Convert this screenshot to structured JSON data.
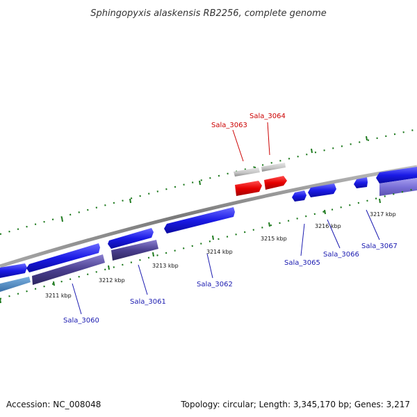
{
  "title": "Sphingopyxis alaskensis RB2256, complete genome",
  "footer": {
    "accession": "Accession: NC_008048",
    "summary": "Topology: circular; Length: 3,345,170 bp; Genes: 3,217"
  },
  "scale_labels": [
    "3211 kbp",
    "3212 kbp",
    "3213 kbp",
    "3214 kbp",
    "3215 kbp",
    "3216 kbp",
    "3217 kbp"
  ],
  "gene_labels": {
    "sala_3060": "Sala_3060",
    "sala_3061": "Sala_3061",
    "sala_3062": "Sala_3062",
    "sala_3063": "Sala_3063",
    "sala_3064": "Sala_3064",
    "sala_3065": "Sala_3065",
    "sala_3066": "Sala_3066",
    "sala_3067": "Sala_3067"
  },
  "colors": {
    "backbone": "#8a8a8a",
    "tick": "#1e7a1e",
    "cds_forward": "#1a1ae6",
    "cds_reverse": "#4a3f8f",
    "rna_gray": "#c8c8c8",
    "highlight_red": "#e60000",
    "label_red": "#cc0000",
    "label_blue": "#1a1ab0"
  }
}
